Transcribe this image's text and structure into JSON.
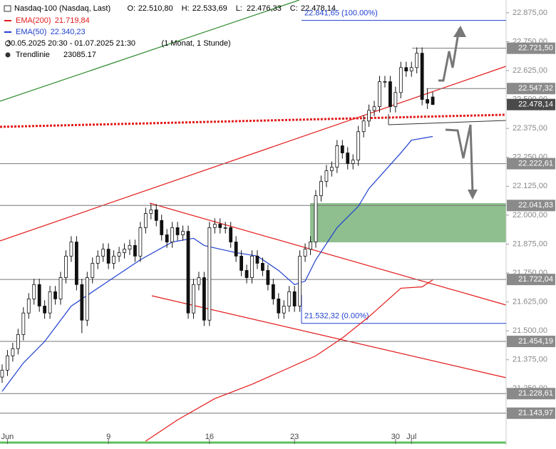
{
  "chart_data": {
    "type": "candlestick",
    "title": "Nasdaq-100 (Nasdaq, Last)",
    "ohlc": [
      {
        "name": "O:",
        "value": 22510.8,
        "label": "22.510,80"
      },
      {
        "name": "H:",
        "value": 22533.69,
        "label": "22.533,69"
      },
      {
        "name": "L:",
        "value": 22476.33,
        "label": "22.476,33"
      },
      {
        "name": "C:",
        "value": 22478.14,
        "label": "22.478,14"
      }
    ],
    "period": "30.05.2025 20:30 - 01.07.2025 21:30",
    "period_note": "(1 Monat, 1 Stunde)",
    "trendline": {
      "name": "Trendlinie",
      "value": 23085.17
    },
    "open": [
      21300,
      21330,
      21392,
      21423,
      21484,
      21577,
      21638,
      21700,
      21607,
      21577,
      21669,
      21638,
      21730,
      21823,
      21884,
      21700,
      21546,
      21730,
      21792,
      21823,
      21853,
      21792,
      21823,
      21838,
      21853,
      21869,
      21823,
      21946,
      22007,
      22023,
      21977,
      21915,
      21884,
      21946,
      21915,
      21930,
      21577,
      21700,
      21730,
      21546,
      21946,
      21961,
      21946,
      21946,
      21884,
      21823,
      21761,
      21730,
      21823,
      21792,
      21761,
      21700,
      21638,
      21577,
      21607,
      21669,
      21607,
      21823,
      21853,
      21884,
      22084,
      22146,
      22192,
      22207,
      22300,
      22269,
      22223,
      22238,
      22361,
      22407,
      22453,
      22469,
      22577,
      22577,
      22469,
      22530,
      22638,
      22623,
      22638,
      22700,
      22500,
      22510.8
    ],
    "high": [
      21355,
      21417,
      21448,
      21509,
      21602,
      21663,
      21725,
      21725,
      21632,
      21694,
      21694,
      21755,
      21848,
      21909,
      21909,
      21725,
      21755,
      21817,
      21848,
      21878,
      21878,
      21848,
      21863,
      21878,
      21894,
      21894,
      21971,
      22032,
      22048,
      22048,
      22002,
      21940,
      21971,
      21971,
      21955,
      21955,
      21725,
      21755,
      21755,
      21971,
      21986,
      21986,
      21971,
      21971,
      21909,
      21848,
      21786,
      21848,
      21848,
      21817,
      21786,
      21725,
      21663,
      21632,
      21694,
      21694,
      21848,
      21878,
      21909,
      22109,
      22171,
      22217,
      22232,
      22325,
      22325,
      22294,
      22263,
      22386,
      22432,
      22478,
      22494,
      22602,
      22602,
      22602,
      22555,
      22663,
      22663,
      22663,
      22725,
      22725,
      22547,
      22533.69
    ],
    "low": [
      21275,
      21305,
      21367,
      21398,
      21459,
      21552,
      21613,
      21582,
      21552,
      21552,
      21613,
      21613,
      21705,
      21798,
      21675,
      21490,
      21521,
      21705,
      21767,
      21798,
      21767,
      21767,
      21798,
      21813,
      21828,
      21798,
      21798,
      21921,
      21982,
      21952,
      21890,
      21859,
      21859,
      21890,
      21890,
      21552,
      21552,
      21675,
      21521,
      21521,
      21921,
      21921,
      21921,
      21859,
      21798,
      21736,
      21705,
      21705,
      21767,
      21736,
      21675,
      21613,
      21552,
      21552,
      21582,
      21582,
      21582,
      21798,
      21828,
      21859,
      22059,
      22121,
      22167,
      22182,
      22244,
      22198,
      22198,
      22213,
      22336,
      22382,
      22428,
      22444,
      22552,
      22444,
      22444,
      22505,
      22598,
      22598,
      22613,
      22475,
      22459,
      22476.33
    ],
    "close": [
      21330,
      21392,
      21423,
      21484,
      21577,
      21638,
      21700,
      21607,
      21577,
      21669,
      21638,
      21730,
      21823,
      21884,
      21700,
      21546,
      21730,
      21792,
      21823,
      21853,
      21792,
      21823,
      21838,
      21853,
      21869,
      21823,
      21946,
      22007,
      22023,
      21977,
      21915,
      21884,
      21946,
      21915,
      21930,
      21577,
      21700,
      21730,
      21546,
      21946,
      21961,
      21946,
      21946,
      21884,
      21823,
      21761,
      21730,
      21823,
      21792,
      21761,
      21700,
      21638,
      21577,
      21607,
      21669,
      21607,
      21823,
      21853,
      21884,
      22084,
      22146,
      22192,
      22207,
      22300,
      22269,
      22223,
      22238,
      22361,
      22407,
      22453,
      22469,
      22577,
      22577,
      22469,
      22530,
      22638,
      22623,
      22638,
      22700,
      22500,
      22484,
      22478.14
    ],
    "series": [
      {
        "name": "EMA(200)",
        "color": "#e31a1a",
        "last_label": "21.719,84",
        "last": 21719.84,
        "x": [
          27,
          33,
          40,
          47,
          53,
          59,
          64,
          69,
          75,
          79,
          81
        ],
        "values": [
          21023,
          21115,
          21207,
          21269,
          21330,
          21392,
          21469,
          21561,
          21684,
          21690,
          21720
        ]
      },
      {
        "name": "EMA(50)",
        "color": "#2040d0",
        "last_label": "22.340,23",
        "last": 22340.23,
        "x": [
          0,
          4,
          8,
          13,
          20,
          26,
          32,
          36,
          38,
          41,
          44,
          48,
          52,
          55,
          57,
          59,
          63,
          67,
          69,
          72,
          75,
          77,
          81
        ],
        "values": [
          21238,
          21361,
          21454,
          21607,
          21715,
          21807,
          21884,
          21900,
          21869,
          21853,
          21838,
          21823,
          21761,
          21700,
          21715,
          21807,
          21946,
          22038,
          22115,
          22192,
          22269,
          22324,
          22340
        ]
      }
    ],
    "xticks": [
      {
        "value": 1,
        "label": "Jun"
      },
      {
        "value": 20,
        "label": "9"
      },
      {
        "value": 39,
        "label": "16"
      },
      {
        "value": 55,
        "label": "23"
      },
      {
        "value": 74,
        "label": "30"
      },
      {
        "value": 77,
        "label": "Jul"
      }
    ],
    "xlim": [
      -0.4,
      94.8
    ],
    "ylim": [
      21020,
      22930
    ],
    "yticks": [
      {
        "value": 22875,
        "label": "22.875,00"
      },
      {
        "value": 22750,
        "label": "22.750,00"
      },
      {
        "value": 22625,
        "label": "22.625,00"
      },
      {
        "value": 22500,
        "label": "22.500,00"
      },
      {
        "value": 22375,
        "label": "22.375,00"
      },
      {
        "value": 22250,
        "label": "22.250,00"
      },
      {
        "value": 22125,
        "label": "22.125,00"
      },
      {
        "value": 22000,
        "label": "22.000,00"
      },
      {
        "value": 21875,
        "label": "21.875,00"
      },
      {
        "value": 21750,
        "label": "21.750,00"
      },
      {
        "value": 21625,
        "label": "21.625,00"
      },
      {
        "value": 21500,
        "label": "21.500,00"
      },
      {
        "value": 21375,
        "label": "21.375,00"
      },
      {
        "value": 21250,
        "label": "21.250,00"
      }
    ],
    "levels": [
      {
        "value": 22721.5,
        "label": "22.721,50"
      },
      {
        "value": 22547.32,
        "label": "22.547,32"
      },
      {
        "value": 22478.14,
        "label": "22.478,14"
      },
      {
        "value": 22222.61,
        "label": "22.222,61"
      },
      {
        "value": 22041.83,
        "label": "22.041,83"
      },
      {
        "value": 21722.04,
        "label": "21.722,04"
      },
      {
        "value": 21454.19,
        "label": "21.454,19"
      },
      {
        "value": 21228.61,
        "label": "21.228,61"
      },
      {
        "value": 21143.97,
        "label": "21.143,97"
      }
    ],
    "fib": [
      {
        "value": 22841.65,
        "label": "22.841,65 (100.00%)"
      },
      {
        "value": 21532.32,
        "label": "21.532,32 (0.00%)"
      }
    ]
  }
}
